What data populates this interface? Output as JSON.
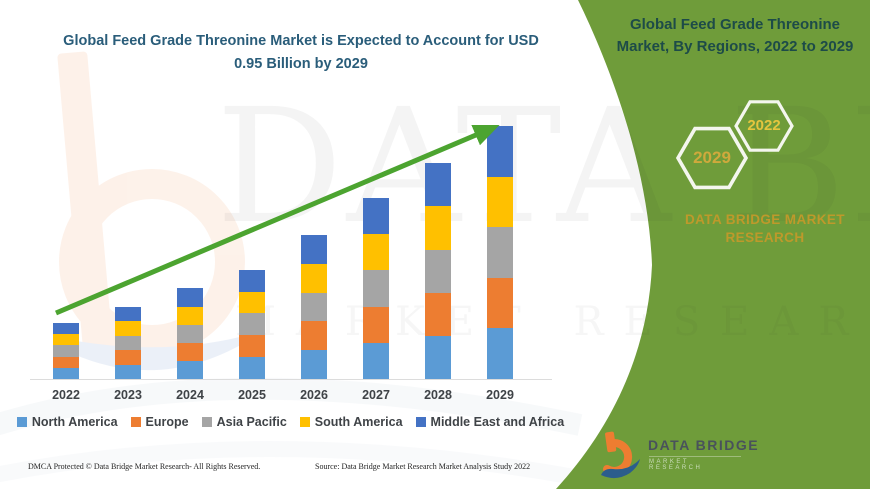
{
  "page": {
    "main_title": "Global Feed Grade Threonine Market is Expected to Account for USD 0.95 Billion by 2029",
    "banner": {
      "title": "Global Feed Grade Threonine Market, By Regions, 2022 to 2029",
      "hex_year_large": "2029",
      "hex_year_small": "2022",
      "brand_line1": "DATA BRIDGE MARKET",
      "brand_line2": "RESEARCH"
    },
    "watermark": {
      "line1": "DATA BRIDGE",
      "line2": "MARKET RESEARCH"
    },
    "footer": {
      "dmca": "DMCA Protected © Data Bridge Market Research- All Rights Reserved.",
      "source": "Source: Data Bridge Market Research Market Analysis Study 2022"
    },
    "logo": {
      "name": "DATA BRIDGE",
      "tagline": "MARKET RESEARCH"
    }
  },
  "colors": {
    "banner_green": "#6F9C3A",
    "arrow_green": "#4CA430",
    "title_teal": "#2A5D7A",
    "banner_title_teal": "#1D4B48",
    "brand_gold": "#BE992B",
    "hex_gold_2029": "#CFA93C",
    "hex_gold_2022": "#E5C53E",
    "axis_gray": "#DCDCDC",
    "label_gray": "#3F4347",
    "logo_orange": "#ED7D31",
    "logo_blue": "#2B5D8C"
  },
  "chart_data": {
    "type": "bar",
    "stacked": true,
    "title": "Global Feed Grade Threonine Market, By Regions, 2022 to 2029",
    "unit": "USD Billion",
    "categories": [
      "2022",
      "2023",
      "2024",
      "2025",
      "2026",
      "2027",
      "2028",
      "2029"
    ],
    "totals": [
      0.21,
      0.27,
      0.34,
      0.41,
      0.54,
      0.68,
      0.81,
      0.95
    ],
    "series": [
      {
        "name": "North America",
        "color": "#5B9BD5",
        "values": [
          0.042,
          0.054,
          0.068,
          0.082,
          0.108,
          0.136,
          0.162,
          0.19
        ]
      },
      {
        "name": "Europe",
        "color": "#ED7D31",
        "values": [
          0.042,
          0.054,
          0.068,
          0.082,
          0.108,
          0.136,
          0.162,
          0.19
        ]
      },
      {
        "name": "Asia Pacific",
        "color": "#A5A5A5",
        "values": [
          0.042,
          0.054,
          0.068,
          0.082,
          0.108,
          0.136,
          0.162,
          0.19
        ]
      },
      {
        "name": "South America",
        "color": "#FFC000",
        "values": [
          0.042,
          0.054,
          0.068,
          0.082,
          0.108,
          0.136,
          0.162,
          0.19
        ]
      },
      {
        "name": "Middle East and Africa",
        "color": "#4472C4",
        "values": [
          0.042,
          0.054,
          0.068,
          0.082,
          0.108,
          0.136,
          0.162,
          0.19
        ]
      }
    ],
    "ylim": [
      0,
      1.0
    ],
    "y_axis_visible": false,
    "grid": false,
    "legend_position": "bottom",
    "annotations": [
      "upward green trend arrow from 2022 to 2029"
    ],
    "key_value_label": "USD 0.95 Billion by 2029"
  }
}
